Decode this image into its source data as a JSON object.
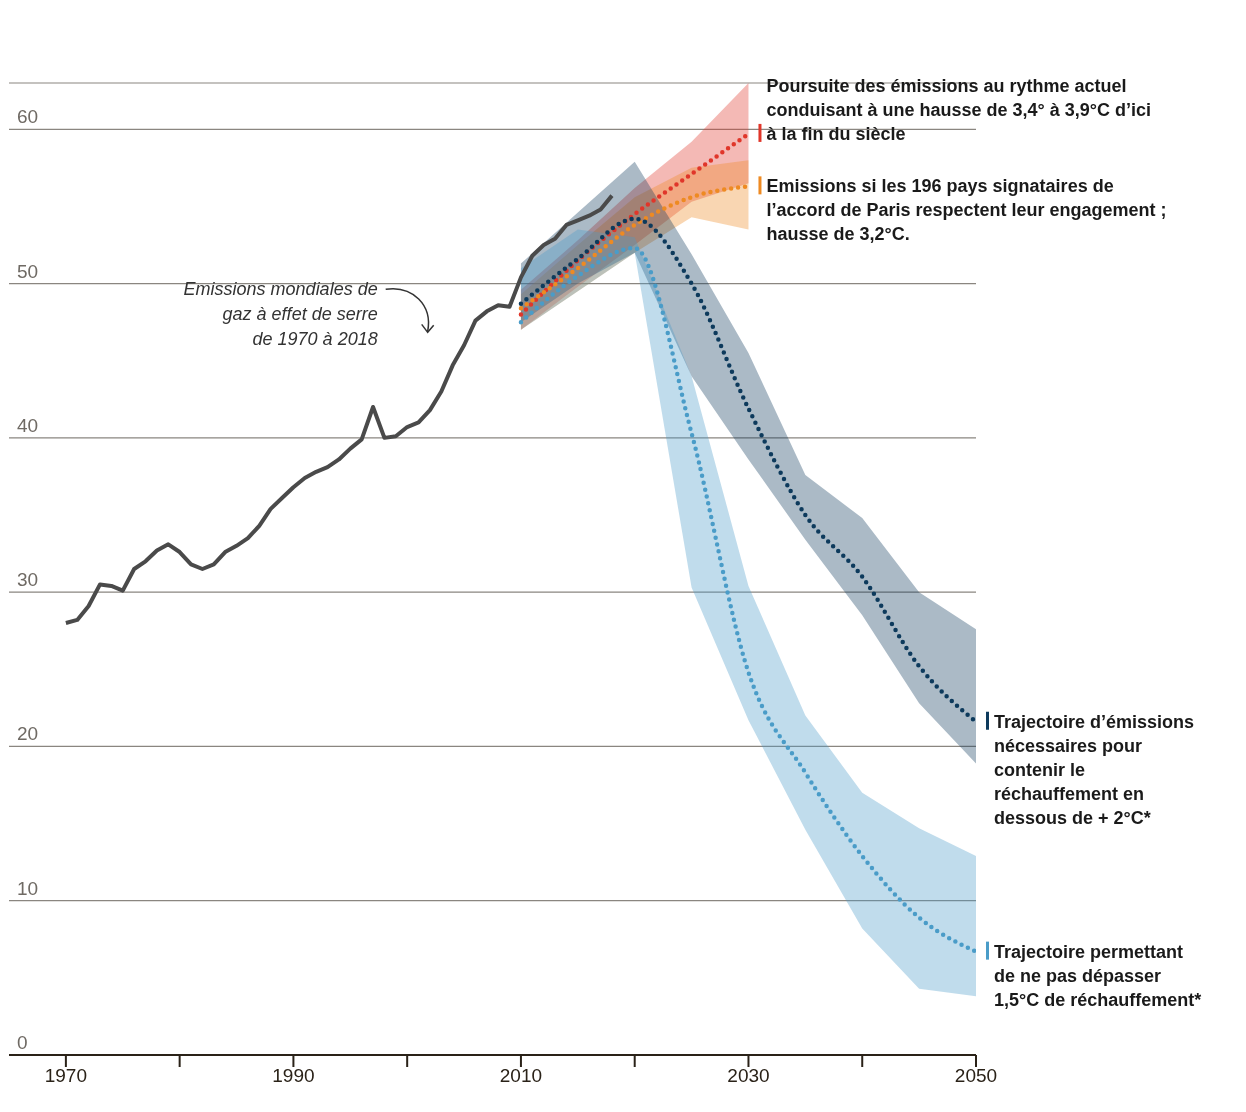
{
  "chart_data": {
    "type": "line",
    "xlim": [
      1965,
      2050
    ],
    "xticks": [
      1970,
      {
        "value": 1980,
        "label": null
      },
      1990,
      {
        "value": 2000,
        "label": null
      },
      2010,
      {
        "value": 2020,
        "label": null
      },
      2030,
      {
        "value": 2040,
        "label": null
      },
      2050
    ],
    "ylim": [
      0,
      63
    ],
    "yticks": [
      0,
      10,
      20,
      30,
      40,
      50,
      60
    ],
    "grid": "y",
    "legend": "right",
    "marker": "none",
    "series": [
      {
        "name": "Emissions mondiales de gaz à effet de serre de 1970 à 2018",
        "color": "#4a4a4a",
        "line_style": "solid",
        "x": [
          1970,
          1971,
          1972,
          1973,
          1974,
          1975,
          1976,
          1977,
          1978,
          1979,
          1980,
          1981,
          1982,
          1983,
          1984,
          1985,
          1986,
          1987,
          1988,
          1989,
          1990,
          1991,
          1992,
          1993,
          1994,
          1995,
          1996,
          1997,
          1998,
          1999,
          2000,
          2001,
          2002,
          2003,
          2004,
          2005,
          2006,
          2007,
          2008,
          2009,
          2010,
          2011,
          2012,
          2013,
          2014,
          2015,
          2016,
          2017,
          2018
        ],
        "values": [
          28.0,
          28.2,
          29.1,
          30.5,
          30.4,
          30.1,
          31.5,
          32.0,
          32.7,
          33.1,
          32.6,
          31.8,
          31.5,
          31.8,
          32.6,
          33.0,
          33.5,
          34.3,
          35.4,
          36.1,
          36.8,
          37.4,
          37.8,
          38.1,
          38.6,
          39.3,
          39.9,
          42.0,
          40.0,
          40.1,
          40.7,
          41.0,
          41.8,
          43.0,
          44.7,
          46.0,
          47.6,
          48.2,
          48.6,
          48.5,
          50.4,
          51.8,
          52.5,
          52.9,
          53.8,
          54.1,
          54.4,
          54.8,
          55.7
        ]
      },
      {
        "name": "Poursuite des émissions au rythme actuel conduisant à une hausse de 3,4° à 3,9°C d’ici à la fin du siècle",
        "color": "#e0362a",
        "line_style": "dotted",
        "x": [
          2010,
          2015,
          2020,
          2025,
          2030
        ],
        "values": [
          48.0,
          51.5,
          54.5,
          57.1,
          59.7
        ],
        "lower": [
          47.0,
          49.8,
          52.5,
          55.3,
          56.5
        ],
        "upper": [
          49.6,
          52.8,
          56.2,
          59.2,
          63.0
        ]
      },
      {
        "name": "Emissions si les 196 pays signataires de l’accord de Paris respectent leur engagement ; hausse de 3,2°C.",
        "color": "#ee8a22",
        "line_style": "dotted",
        "x": [
          2010,
          2015,
          2020,
          2025,
          2030
        ],
        "values": [
          48.4,
          51.0,
          53.8,
          55.6,
          56.3
        ],
        "lower": [
          47.0,
          49.5,
          52.0,
          54.3,
          53.5
        ],
        "upper": [
          49.3,
          52.5,
          55.6,
          57.5,
          58.0
        ]
      },
      {
        "name": "Trajectoire d’émissions nécessaires pour contenir le réchauffement en dessous de + 2°C*",
        "color": "#0d3a5c",
        "line_style": "dotted",
        "x": [
          2010,
          2015,
          2020,
          2025,
          2030,
          2035,
          2040,
          2045,
          2050
        ],
        "values": [
          48.7,
          51.6,
          54.2,
          50.0,
          41.9,
          35.0,
          31.0,
          25.2,
          21.6
        ],
        "lower": [
          47.5,
          50.0,
          52.0,
          44.0,
          38.6,
          33.4,
          28.5,
          22.8,
          18.9
        ],
        "upper": [
          51.3,
          54.6,
          57.9,
          51.9,
          45.5,
          37.6,
          34.8,
          30.0,
          27.6
        ]
      },
      {
        "name": "Trajectoire permettant de ne pas dépasser 1,5°C de réchauffement*",
        "color": "#4a9cc8",
        "line_style": "dotted",
        "x": [
          2010,
          2015,
          2020,
          2025,
          2030,
          2035,
          2040,
          2045,
          2050
        ],
        "values": [
          47.5,
          50.5,
          52.3,
          40.3,
          24.8,
          18.3,
          12.9,
          8.9,
          6.7
        ],
        "lower": [
          47.0,
          49.5,
          52.0,
          30.3,
          21.7,
          14.6,
          8.2,
          4.3,
          3.8
        ],
        "upper": [
          51.0,
          53.5,
          53.0,
          44.0,
          30.4,
          22.0,
          17.0,
          14.7,
          12.9
        ]
      }
    ]
  }
}
